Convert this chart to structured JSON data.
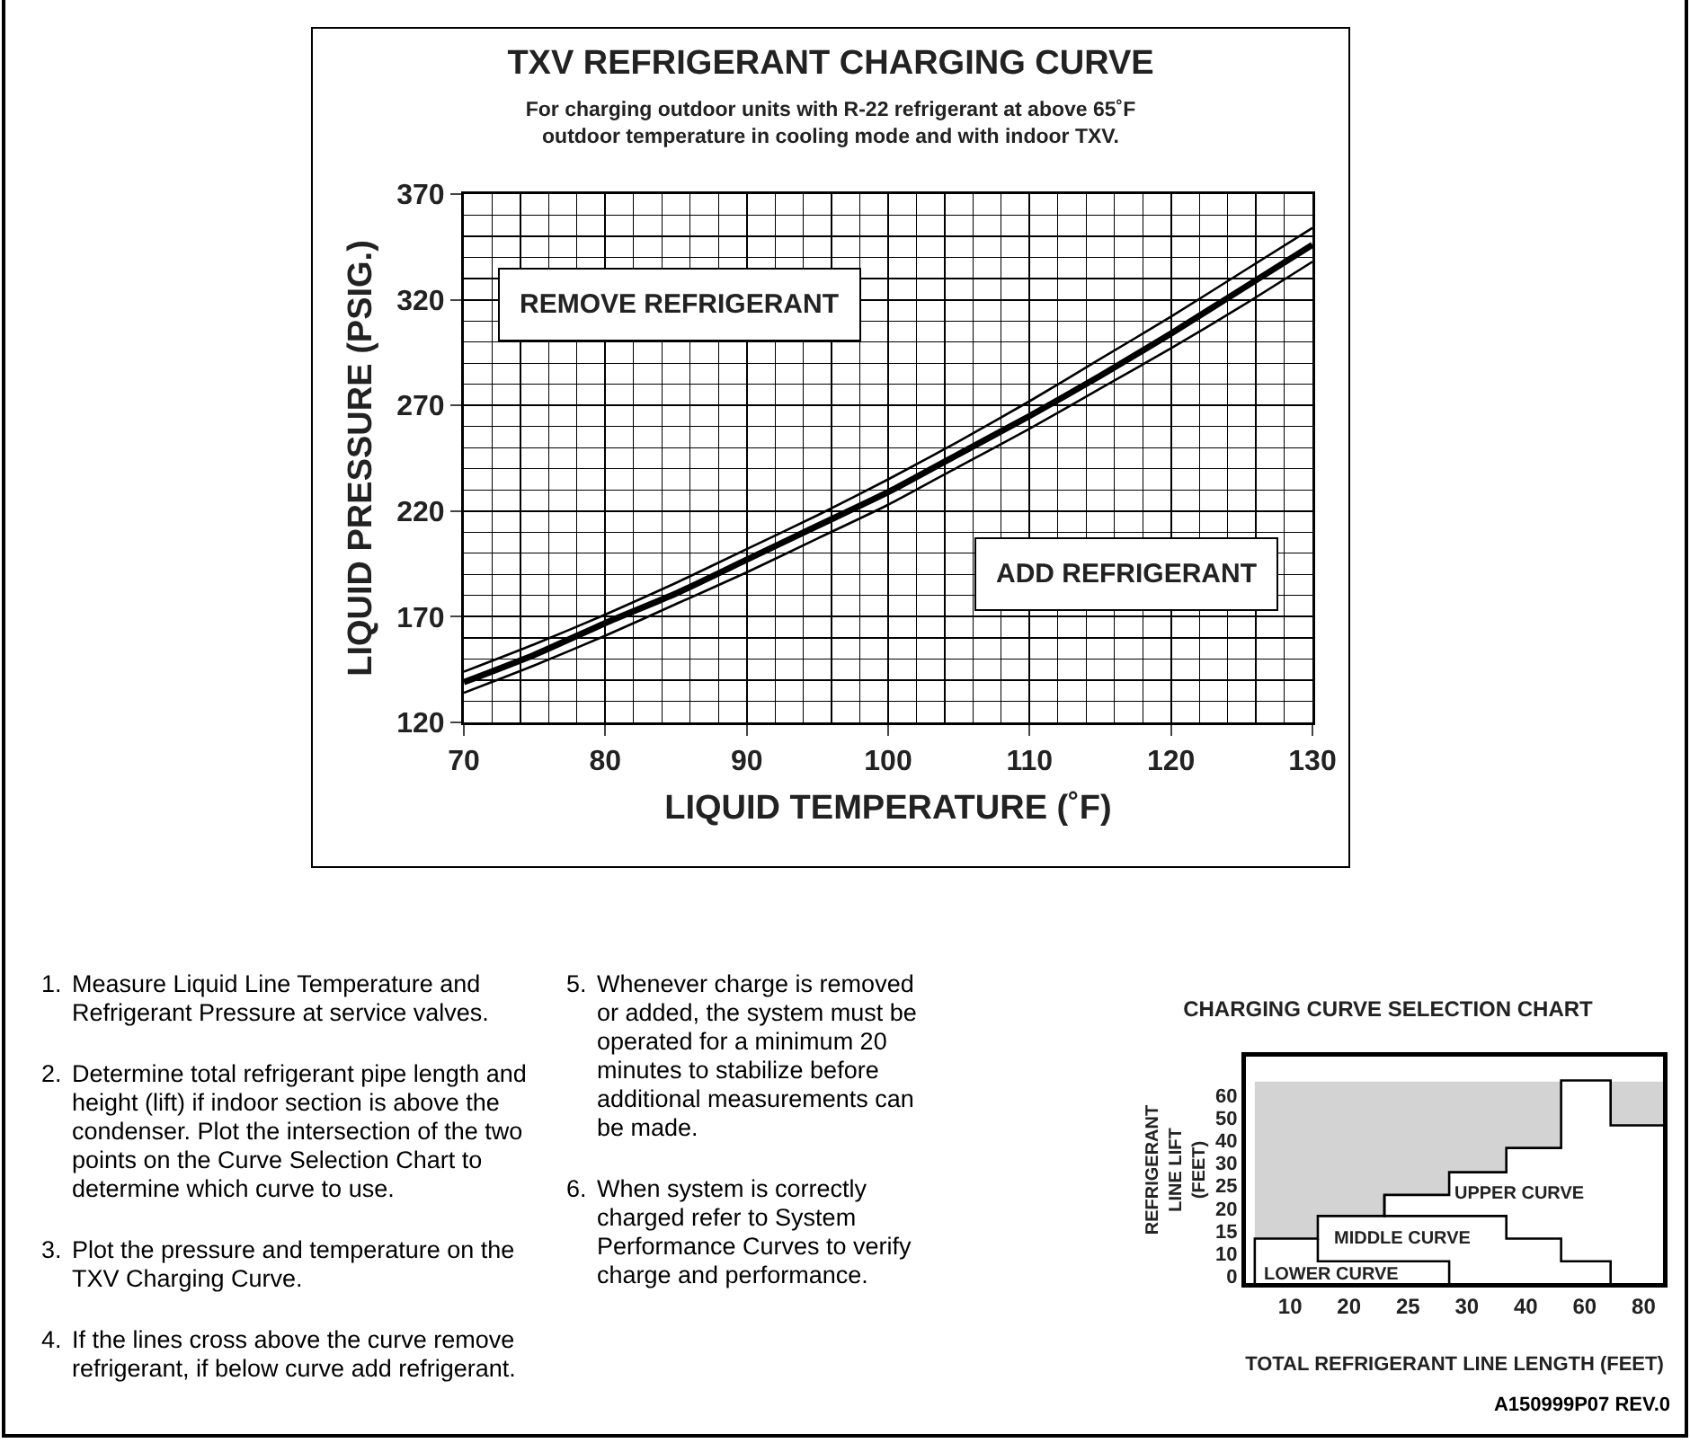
{
  "chart_data": [
    {
      "type": "line",
      "title": "TXV REFRIGERANT CHARGING CURVE",
      "subtitle": "For charging outdoor units with R-22 refrigerant at above 65˚F outdoor temperature in cooling mode and with indoor TXV.",
      "xlabel": "LIQUID TEMPERATURE (˚F)",
      "ylabel": "LIQUID PRESSURE (PSIG.)",
      "x": [
        70,
        75,
        80,
        85,
        90,
        95,
        100,
        105,
        110,
        115,
        120,
        125,
        130
      ],
      "series": [
        {
          "color": "#000000",
          "values": [
            144,
            157,
            171,
            186,
            202,
            218,
            235,
            253,
            272,
            292,
            312,
            333,
            354
          ]
        },
        {
          "color": "#000000",
          "values": [
            139,
            152,
            167,
            181,
            197,
            213,
            229,
            247,
            265,
            284,
            304,
            325,
            346
          ]
        },
        {
          "color": "#000000",
          "values": [
            134,
            147,
            161,
            176,
            191,
            207,
            223,
            241,
            259,
            278,
            297,
            317,
            338
          ]
        }
      ],
      "annotations": [
        "REMOVE REFRIGERANT",
        "ADD REFRIGERANT"
      ],
      "xlim": [
        70,
        130
      ],
      "xticks": [
        70,
        80,
        90,
        100,
        110,
        120,
        130
      ],
      "ylim": [
        120,
        370
      ],
      "yticks": [
        120,
        170,
        220,
        270,
        320,
        370
      ],
      "grid": true,
      "marker": "none",
      "line_style": "solid"
    },
    {
      "type": "other",
      "annotations": [
        "1. Measure Liquid Line Temperature and Refrigerant Pressure at service valves.",
        "2. Determine total refrigerant pipe length and height (lift) if indoor section is above the condenser. Plot the intersection of the two points on the Curve Selection Chart to determine which curve to use.",
        "3. Plot the pressure and temperature on the TXV Charging Curve.",
        "4. If the lines cross above the curve remove refrigerant, if below curve add refrigerant.",
        "5. Whenever charge is removed or added, the system must be operated for a minimum 20 minutes to stabilize before additional measurements can be made.",
        "6. When system is correctly charged refer to System Performance Curves to verify charge and performance.",
        "A150999P07 REV.0"
      ]
    },
    {
      "type": "other",
      "title": "CHARGING CURVE SELECTION CHART",
      "xlabel": "TOTAL REFRIGERANT LINE LENGTH (FEET)",
      "ylabel": "REFRIGERANT LINE LIFT (FEET)",
      "categories": [
        "10",
        "20",
        "25",
        "30",
        "40",
        "60",
        "80"
      ],
      "y_categories": [
        "60",
        "50",
        "40",
        "30",
        "25",
        "20",
        "15",
        "10",
        "0"
      ],
      "annotations": [
        "LOWER CURVE",
        "MIDDLE CURVE",
        "UPPER CURVE"
      ]
    }
  ]
}
